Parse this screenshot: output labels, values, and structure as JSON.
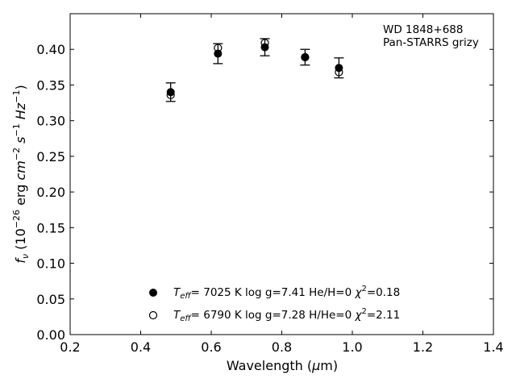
{
  "chart_data": {
    "type": "scatter",
    "xlabel_main": "Wavelength (",
    "xlabel_mu": "μ",
    "xlabel_unit": "m)",
    "ylabel_f": "f",
    "ylabel_nu": "ν",
    "ylabel_open": " (10",
    "ylabel_exp1": "−26",
    "ylabel_erg": " erg ",
    "ylabel_cm": "cm",
    "ylabel_exp2": "−2",
    "ylabel_s": " s",
    "ylabel_exp3": "−1",
    "ylabel_hz": " Hz",
    "ylabel_exp4": "−1",
    "ylabel_close": ")",
    "xlim": [
      0.2,
      1.4
    ],
    "ylim": [
      0.0,
      0.45
    ],
    "xticks": [
      0.2,
      0.4,
      0.6,
      0.8,
      1.0,
      1.2,
      1.4
    ],
    "xtick_labels": [
      "0.2",
      "0.4",
      "0.6",
      "0.8",
      "1.0",
      "1.2",
      "1.4"
    ],
    "yticks": [
      0.0,
      0.05,
      0.1,
      0.15,
      0.2,
      0.25,
      0.3,
      0.35,
      0.4
    ],
    "ytick_labels": [
      "0.00",
      "0.05",
      "0.10",
      "0.15",
      "0.20",
      "0.25",
      "0.30",
      "0.35",
      "0.40"
    ],
    "grid": false,
    "annotation_line1": "WD 1848+688",
    "annotation_line2": "Pan-STARRS grizy",
    "observed": {
      "x": [
        0.485,
        0.619,
        0.752,
        0.866,
        0.962
      ],
      "y": [
        0.34,
        0.394,
        0.403,
        0.389,
        0.374
      ],
      "err": [
        0.013,
        0.014,
        0.012,
        0.011,
        0.014
      ]
    },
    "series": [
      {
        "marker": "filled",
        "teff_T": "T",
        "teff_sub": "eff",
        "teff_rest": "=  7025 K  log g=7.41  He/H=0  ",
        "chi_symbol": "χ",
        "chi_exp": "2",
        "chi_value": "=0.18",
        "x": [
          0.485,
          0.619,
          0.752,
          0.866,
          0.962
        ],
        "y": [
          0.34,
          0.394,
          0.403,
          0.389,
          0.374
        ]
      },
      {
        "marker": "open",
        "teff_T": "T",
        "teff_sub": "eff",
        "teff_rest": "=  6790 K  log g=7.28  H/He=0  ",
        "chi_symbol": "χ",
        "chi_exp": "2",
        "chi_value": "=2.11",
        "x": [
          0.485,
          0.619,
          0.752,
          0.866,
          0.962
        ],
        "y": [
          0.336,
          0.402,
          0.409,
          0.389,
          0.368
        ]
      }
    ],
    "legend_location": "lower-center"
  }
}
